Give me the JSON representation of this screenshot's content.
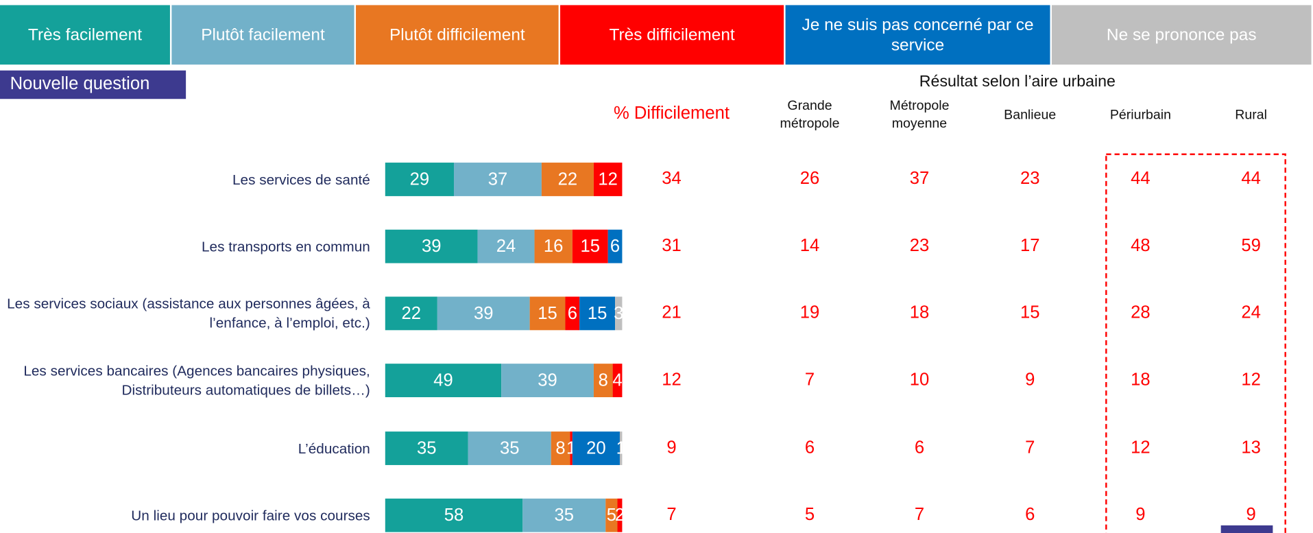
{
  "chart_data": {
    "type": "bar",
    "orientation": "horizontal",
    "stacked": true,
    "note": "Nouvelle question",
    "categories": [
      "Les services de santé",
      "Les transports en commun",
      "Les services sociaux (assistance aux personnes âgées, à l’enfance, à l’emploi, etc.)",
      "Les services bancaires (Agences bancaires physiques, Distributeurs automatiques de billets…)",
      "L’éducation",
      "Un lieu pour pouvoir faire vos courses"
    ],
    "xlim": [
      0,
      100
    ],
    "series": [
      {
        "name": "Très facilement",
        "color": "#14a19a",
        "values": [
          29,
          39,
          22,
          49,
          35,
          58
        ]
      },
      {
        "name": "Plutôt facilement",
        "color": "#72b1c9",
        "values": [
          37,
          24,
          39,
          39,
          35,
          35
        ]
      },
      {
        "name": "Plutôt difficilement",
        "color": "#e87722",
        "values": [
          22,
          16,
          15,
          8,
          8,
          5
        ]
      },
      {
        "name": "Très difficilement",
        "color": "#ff0000",
        "values": [
          12,
          15,
          6,
          4,
          1,
          2
        ]
      },
      {
        "name": "Je ne suis pas concerné par ce service",
        "color": "#0070c0",
        "values": [
          null,
          6,
          15,
          null,
          20,
          null
        ]
      },
      {
        "name": "Ne se prononce pas",
        "color": "#bfbfbf",
        "values": [
          null,
          null,
          3,
          null,
          1,
          null
        ]
      }
    ],
    "table_title": "Résultat selon l’aire urbaine",
    "table_columns": [
      {
        "name": "% Difficilement",
        "values": [
          34,
          31,
          21,
          12,
          9,
          7
        ]
      },
      {
        "name": "Grande métropole",
        "values": [
          26,
          14,
          19,
          7,
          6,
          5
        ]
      },
      {
        "name": "Métropole moyenne",
        "values": [
          37,
          23,
          18,
          10,
          6,
          7
        ]
      },
      {
        "name": "Banlieue",
        "values": [
          23,
          17,
          15,
          9,
          7,
          6
        ]
      },
      {
        "name": "Périurbain",
        "values": [
          44,
          48,
          28,
          18,
          12,
          9
        ]
      },
      {
        "name": "Rural",
        "values": [
          44,
          59,
          24,
          12,
          13,
          9
        ]
      }
    ]
  }
}
